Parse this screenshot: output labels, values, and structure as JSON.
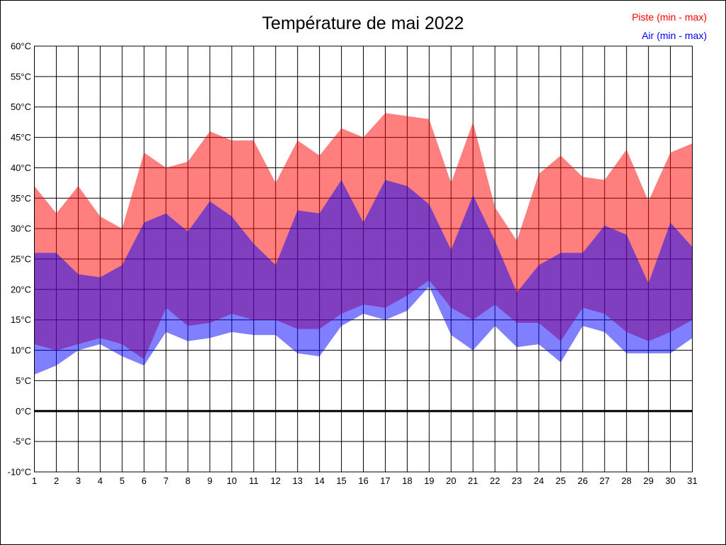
{
  "title": "Température de mai 2022",
  "legend": {
    "piste_label": "Piste (min - max)",
    "air_label": "Air (min - max)",
    "piste_color": "#ff0000",
    "air_color": "#0000ff"
  },
  "colors": {
    "piste_fill": "#ff0000",
    "air_fill": "#0000ff",
    "fill_opacity": 0.5,
    "grid": "#000000",
    "background": "#ffffff",
    "overlap_seen": "#8040bf",
    "piste_seen": "#ff8080",
    "air_seen": "#8080ff"
  },
  "chart_data": {
    "type": "area",
    "title": "Température de mai 2022",
    "xlabel": "",
    "ylabel": "",
    "ylim": [
      -10,
      60
    ],
    "y_tick_step": 5,
    "y_tick_labels": [
      "60°C",
      "55°C",
      "50°C",
      "45°C",
      "40°C",
      "35°C",
      "30°C",
      "25°C",
      "20°C",
      "15°C",
      "10°C",
      "5°C",
      "0°C",
      "-5°C",
      "-10°C"
    ],
    "days": [
      1,
      2,
      3,
      4,
      5,
      6,
      7,
      8,
      9,
      10,
      11,
      12,
      13,
      14,
      15,
      16,
      17,
      18,
      19,
      20,
      21,
      22,
      23,
      24,
      25,
      26,
      27,
      28,
      29,
      30,
      31
    ],
    "grid": true,
    "zero_line": {
      "value": 0,
      "stroke_width": 3
    },
    "legend_position": "top-right",
    "series": [
      {
        "name": "Piste (min - max)",
        "color": "#ff0000",
        "max": [
          37,
          32.5,
          37,
          32,
          30,
          42.5,
          40,
          41,
          46,
          44.5,
          44.5,
          37.5,
          44.5,
          42,
          46.5,
          45,
          49,
          48.5,
          48,
          37.5,
          47.5,
          33.5,
          28,
          39,
          42,
          38.5,
          38,
          43,
          34.5,
          42.5,
          44
        ],
        "min": [
          11,
          10,
          11,
          12,
          11,
          8.5,
          17,
          14,
          14.5,
          16,
          15,
          15,
          13.5,
          13.5,
          16,
          17.5,
          17,
          19,
          21.5,
          17,
          15,
          17.5,
          14.5,
          14.5,
          11.5,
          17,
          16,
          13,
          11.5,
          13,
          15
        ]
      },
      {
        "name": "Air (min - max)",
        "color": "#0000ff",
        "max": [
          26,
          26,
          22.5,
          22,
          24,
          31,
          32.5,
          29.5,
          34.5,
          32,
          27.5,
          24,
          33,
          32.5,
          38,
          31,
          38,
          37,
          34,
          26.5,
          35.5,
          28,
          19.5,
          24,
          26,
          26,
          30.5,
          29,
          21,
          31,
          27
        ],
        "min": [
          6,
          7.5,
          10,
          11,
          9,
          7.5,
          13,
          11.5,
          12,
          13,
          12.5,
          12.5,
          9.5,
          9,
          14,
          16,
          15,
          16.5,
          20.5,
          12.5,
          10,
          14,
          10.5,
          11,
          8,
          14,
          13,
          9.5,
          9.5,
          9.5,
          12
        ]
      }
    ]
  }
}
